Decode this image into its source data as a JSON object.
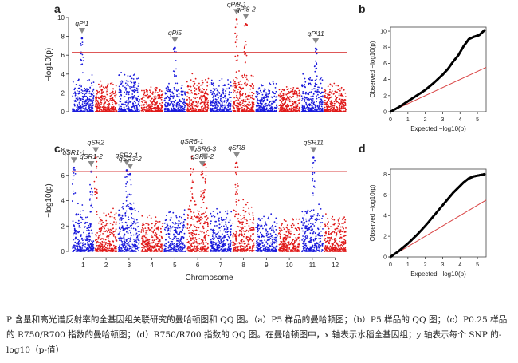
{
  "figure": {
    "caption": "P 含量和高光谱反射率的全基因组关联研究的曼哈顿图和 QQ 图。（a）P5 样品的曼哈顿图；（b）P5 样品的 QQ 图；（c）P0.25 样品的 R750/R700 指数的曼哈顿图；（d）R750/R700 指数的 QQ 图。在曼哈顿图中，x 轴表示水稻全基因组；y 轴表示每个 SNP 的-log10（p-值）"
  },
  "chart_data": [
    {
      "panel": "a",
      "type": "scatter",
      "xlabel": "",
      "ylabel": "−log10(p)",
      "ylim": [
        0,
        10
      ],
      "yticks": [
        0,
        2,
        4,
        6,
        8,
        10
      ],
      "threshold": 6.3,
      "chromosomes": [
        "1",
        "2",
        "3",
        "4",
        "5",
        "6",
        "7",
        "8",
        "9",
        "10",
        "11",
        "12"
      ],
      "colors": {
        "odd": "#1a1adc",
        "even": "#e01919",
        "threshold": "#d94040",
        "marker": "#8a8a8a"
      },
      "peak_heights": [
        4.3,
        3.6,
        4.5,
        2.9,
        3.2,
        4.4,
        3.9,
        4.6,
        3.4,
        3.0,
        4.2,
        3.3
      ],
      "qtls": [
        {
          "label": "qPi1",
          "chr": 1,
          "pos": 0.45,
          "y": 7.8
        },
        {
          "label": "qPi5",
          "chr": 5,
          "pos": 0.5,
          "y": 6.8
        },
        {
          "label": "qPi8-1",
          "chr": 8,
          "pos": 0.2,
          "y": 9.8
        },
        {
          "label": "qPi8-2",
          "chr": 8,
          "pos": 0.6,
          "y": 9.3
        },
        {
          "label": "qPi11",
          "chr": 11,
          "pos": 0.65,
          "y": 6.7
        }
      ]
    },
    {
      "panel": "b",
      "type": "scatter",
      "xlabel": "Expected −log10(p)",
      "ylabel": "Observed −log10(p)",
      "xlim": [
        0,
        5.5
      ],
      "ylim": [
        0,
        10.5
      ],
      "xticks": [
        0,
        1,
        2,
        3,
        4,
        5
      ],
      "yticks": [
        0,
        2,
        4,
        6,
        8,
        10
      ],
      "x": [
        0,
        0.5,
        1.0,
        1.5,
        2.0,
        2.5,
        3.0,
        3.3,
        3.6,
        3.9,
        4.2,
        4.5,
        4.8,
        5.1,
        5.4
      ],
      "y": [
        0,
        0.6,
        1.3,
        2.0,
        2.7,
        3.6,
        4.6,
        5.3,
        6.2,
        7.0,
        8.1,
        9.0,
        9.3,
        9.5,
        10.1
      ],
      "reference_line": {
        "x": [
          0,
          5.5
        ],
        "y": [
          0,
          5.5
        ]
      }
    },
    {
      "panel": "c",
      "type": "scatter",
      "xlabel": "Chromosome",
      "ylabel": "−log10(p)",
      "ylim": [
        0,
        8
      ],
      "yticks": [
        0,
        2,
        4,
        6,
        8
      ],
      "threshold": 6.3,
      "chromosomes": [
        "1",
        "2",
        "3",
        "4",
        "5",
        "6",
        "7",
        "8",
        "9",
        "10",
        "11",
        "12"
      ],
      "colors": {
        "odd": "#1a1adc",
        "even": "#e01919",
        "threshold": "#d94040",
        "marker": "#8a8a8a"
      },
      "peak_heights": [
        4.0,
        3.4,
        4.2,
        3.0,
        3.6,
        4.4,
        3.8,
        4.3,
        3.2,
        2.9,
        4.0,
        3.1
      ],
      "qtls": [
        {
          "label": "qSR1-1",
          "chr": 1,
          "pos": 0.1,
          "y": 6.6
        },
        {
          "label": "qSR1-2",
          "chr": 1,
          "pos": 0.85,
          "y": 6.3
        },
        {
          "label": "qSR2",
          "chr": 2,
          "pos": 0.05,
          "y": 7.4
        },
        {
          "label": "qSR3-1",
          "chr": 3,
          "pos": 0.4,
          "y": 6.4
        },
        {
          "label": "qSR3-2",
          "chr": 3,
          "pos": 0.55,
          "y": 6.1
        },
        {
          "label": "qSR6-1",
          "chr": 6,
          "pos": 0.25,
          "y": 7.5
        },
        {
          "label": "qSR6-2",
          "chr": 6,
          "pos": 0.7,
          "y": 6.3
        },
        {
          "label": "qSR6-3",
          "chr": 6,
          "pos": 0.8,
          "y": 6.9
        },
        {
          "label": "qSR8",
          "chr": 8,
          "pos": 0.2,
          "y": 7.0
        },
        {
          "label": "qSR11",
          "chr": 11,
          "pos": 0.55,
          "y": 7.4
        }
      ]
    },
    {
      "panel": "d",
      "type": "scatter",
      "xlabel": "Expected −log10(p)",
      "ylabel": "Observed −log10(p)",
      "xlim": [
        0,
        5.5
      ],
      "ylim": [
        0,
        8.5
      ],
      "xticks": [
        0,
        1,
        2,
        3,
        4,
        5
      ],
      "yticks": [
        0,
        2,
        4,
        6,
        8
      ],
      "x": [
        0,
        0.5,
        1.0,
        1.5,
        2.0,
        2.5,
        3.0,
        3.3,
        3.6,
        3.9,
        4.2,
        4.5,
        4.8,
        5.1,
        5.4
      ],
      "y": [
        0,
        0.6,
        1.3,
        2.1,
        3.0,
        4.0,
        5.0,
        5.6,
        6.2,
        6.7,
        7.2,
        7.6,
        7.8,
        7.9,
        8.0
      ],
      "reference_line": {
        "x": [
          0,
          5.5
        ],
        "y": [
          0,
          5.5
        ]
      }
    }
  ]
}
